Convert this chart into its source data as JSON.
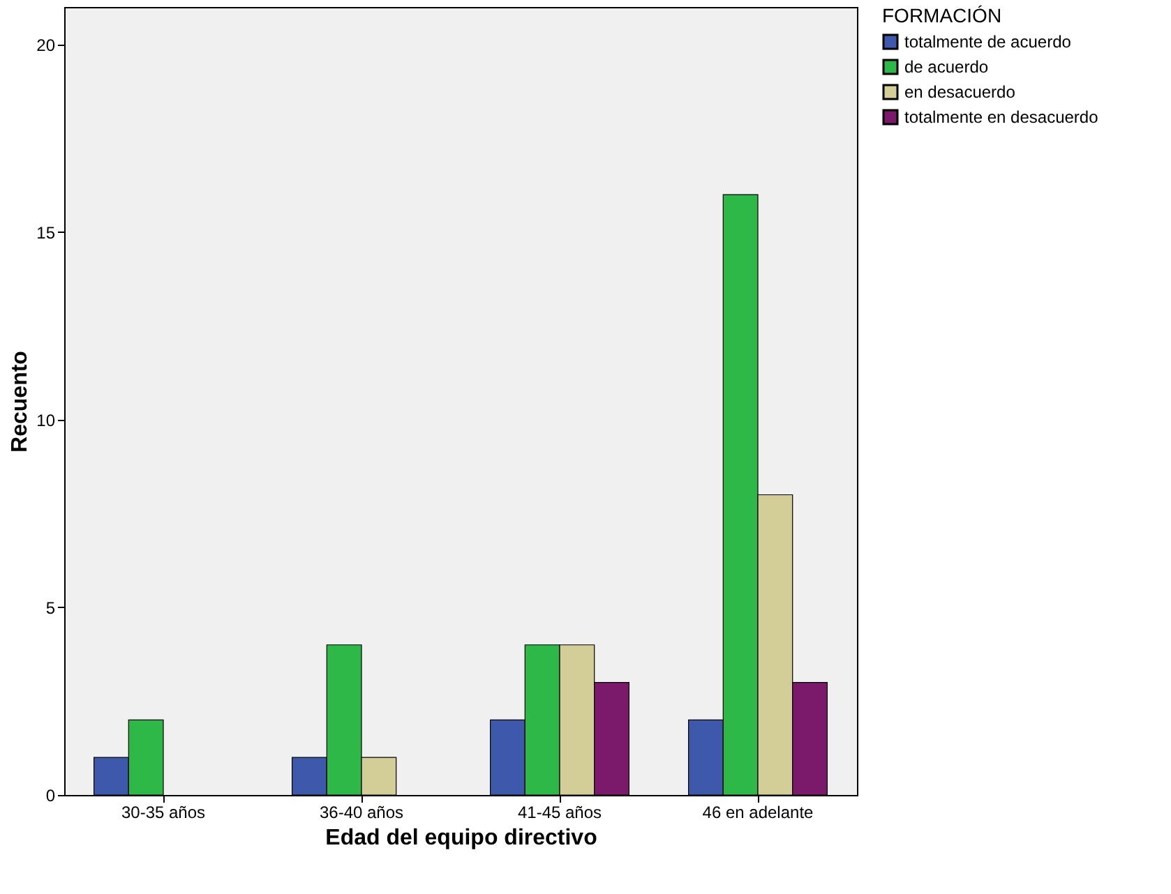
{
  "chart_data": {
    "type": "bar",
    "xlabel": "Edad del equipo directivo",
    "ylabel": "Recuento",
    "legend_title": "FORMACIÓN",
    "categories": [
      "30-35 años",
      "36-40 años",
      "41-45 años",
      "46 en adelante"
    ],
    "series": [
      {
        "name": "totalmente de acuerdo",
        "color": "#3e58ac",
        "values": [
          1,
          1,
          2,
          2
        ]
      },
      {
        "name": "de acuerdo",
        "color": "#2eb848",
        "values": [
          2,
          4,
          4,
          16
        ]
      },
      {
        "name": "en desacuerdo",
        "color": "#d3ce97",
        "values": [
          null,
          1,
          4,
          8
        ]
      },
      {
        "name": "totalmente en desacuerdo",
        "color": "#7b1a6a",
        "values": [
          null,
          null,
          3,
          3
        ]
      }
    ],
    "ylim": [
      0,
      21
    ],
    "yticks": [
      0,
      5,
      10,
      15,
      20
    ],
    "grid": false,
    "legend": "top right"
  }
}
